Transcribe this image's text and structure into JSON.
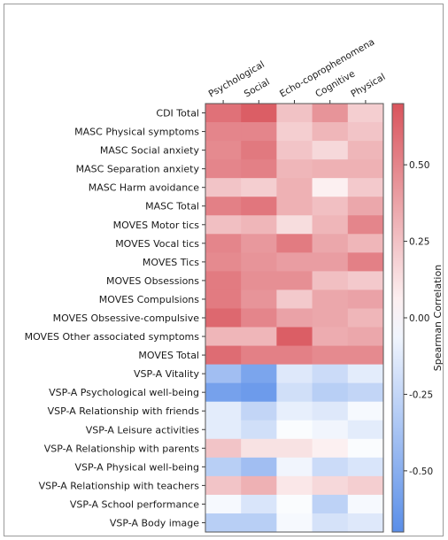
{
  "chart_data": {
    "type": "heatmap",
    "title": "",
    "columns": [
      "Psychological",
      "Social",
      "Echo-coprophenomena",
      "Cognitive",
      "Physical"
    ],
    "rows": [
      "CDI Total",
      "MASC Physical symptoms",
      "MASC Social anxiety",
      "MASC Separation anxiety",
      "MASC Harm avoidance",
      "MASC Total",
      "MOVES Motor tics",
      "MOVES Vocal tics",
      "MOVES Tics",
      "MOVES Obsessions",
      "MOVES Compulsions",
      "MOVES Obsessive-compulsive",
      "MOVES Other associated symptoms",
      "MOVES Total",
      "VSP-A Vitality",
      "VSP-A Psychological well-being",
      "VSP-A Relationship with friends",
      "VSP-A Leisure activities",
      "VSP-A Relationship with parents",
      "VSP-A Physical well-being",
      "VSP-A Relationship with teachers",
      "VSP-A School performance",
      "VSP-A Body image"
    ],
    "values": [
      [
        0.58,
        0.66,
        0.25,
        0.44,
        0.2
      ],
      [
        0.5,
        0.5,
        0.2,
        0.3,
        0.24
      ],
      [
        0.48,
        0.55,
        0.24,
        0.16,
        0.3
      ],
      [
        0.5,
        0.52,
        0.3,
        0.32,
        0.32
      ],
      [
        0.24,
        0.2,
        0.32,
        0.06,
        0.22
      ],
      [
        0.52,
        0.56,
        0.32,
        0.26,
        0.36
      ],
      [
        0.26,
        0.3,
        0.14,
        0.3,
        0.5
      ],
      [
        0.5,
        0.42,
        0.54,
        0.36,
        0.3
      ],
      [
        0.48,
        0.44,
        0.4,
        0.4,
        0.52
      ],
      [
        0.54,
        0.46,
        0.46,
        0.26,
        0.22
      ],
      [
        0.54,
        0.44,
        0.22,
        0.36,
        0.38
      ],
      [
        0.62,
        0.5,
        0.38,
        0.36,
        0.3
      ],
      [
        0.3,
        0.3,
        0.66,
        0.34,
        0.36
      ],
      [
        0.6,
        0.52,
        0.52,
        0.48,
        0.48
      ],
      [
        -0.4,
        -0.56,
        -0.14,
        -0.22,
        -0.12
      ],
      [
        -0.58,
        -0.62,
        -0.2,
        -0.3,
        -0.26
      ],
      [
        -0.12,
        -0.26,
        -0.1,
        -0.14,
        -0.04
      ],
      [
        -0.12,
        -0.2,
        -0.02,
        -0.06,
        -0.12
      ],
      [
        0.24,
        0.12,
        0.12,
        0.06,
        -0.02
      ],
      [
        -0.3,
        -0.4,
        -0.06,
        -0.22,
        -0.16
      ],
      [
        0.24,
        0.32,
        0.1,
        0.16,
        0.2
      ],
      [
        -0.04,
        -0.16,
        -0.02,
        -0.28,
        -0.04
      ],
      [
        -0.3,
        -0.3,
        -0.04,
        -0.18,
        -0.14
      ]
    ],
    "colorbar": {
      "label": "Spearman Correlation",
      "range": [
        -0.7,
        0.7
      ],
      "ticks": [
        0.5,
        0.25,
        0.0,
        -0.25,
        -0.5
      ],
      "tick_labels": [
        "0.50",
        "0.25",
        "0.00",
        "-0.25",
        "-0.50"
      ],
      "colors": {
        "positive": "#d9545c",
        "neutral": "#ffffff",
        "negative": "#5a8ee8"
      }
    },
    "grid": false,
    "legend_position": "right"
  }
}
